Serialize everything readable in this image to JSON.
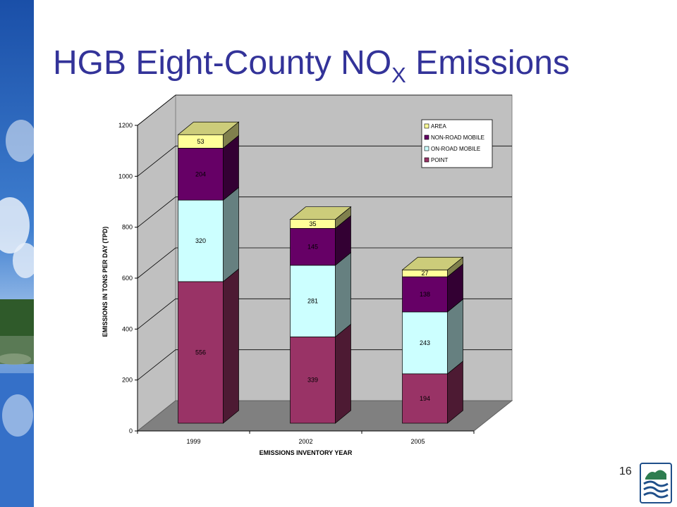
{
  "slide": {
    "title_main": "HGB Eight-County NO",
    "title_sub": "X",
    "title_end": " Emissions",
    "page_number": "16"
  },
  "colors": {
    "title": "#333399",
    "point": "#993366",
    "on_road": "#ccffff",
    "non_road": "#660066",
    "area": "#ffff99",
    "wall": "#c0c0c0",
    "floor": "#808080"
  },
  "chart_data": {
    "type": "bar",
    "stacked": true,
    "three_d": true,
    "categories": [
      "1999",
      "2002",
      "2005"
    ],
    "series": [
      {
        "name": "POINT",
        "values": [
          556,
          339,
          194
        ],
        "labels": [
          "556",
          "339",
          "194"
        ],
        "color": "#993366",
        "side": "#4d1a33",
        "top": "#b8708f"
      },
      {
        "name": "ON-ROAD MOBILE",
        "values": [
          320,
          281,
          243
        ],
        "labels": [
          "320",
          "281",
          "243"
        ],
        "color": "#ccffff",
        "side": "#668080",
        "top": "#e0ffff"
      },
      {
        "name": "NON-ROAD MOBILE",
        "values": [
          204,
          145,
          138
        ],
        "labels": [
          "204",
          "145",
          "138"
        ],
        "color": "#660066",
        "side": "#330033",
        "top": "#8c4d8c"
      },
      {
        "name": "AREA",
        "values": [
          53,
          35,
          27
        ],
        "labels": [
          "53",
          "35",
          "27"
        ],
        "color": "#ffff99",
        "side": "#80804d",
        "top": "#cccc7a"
      }
    ],
    "legend_order": [
      "AREA",
      "NON-ROAD MOBILE",
      "ON-ROAD MOBILE",
      "POINT"
    ],
    "legend_position": "top-right",
    "ylim": [
      0,
      1200
    ],
    "yticks": [
      0,
      200,
      400,
      600,
      800,
      1000,
      1200
    ],
    "ytick_labels": [
      "0",
      "200",
      "400",
      "600",
      "800",
      "1000",
      "1200"
    ],
    "ylabel": "EMISSIONS IN TONS PER DAY (TPD)",
    "xlabel": "EMISSIONS INVENTORY YEAR",
    "grid": true
  }
}
